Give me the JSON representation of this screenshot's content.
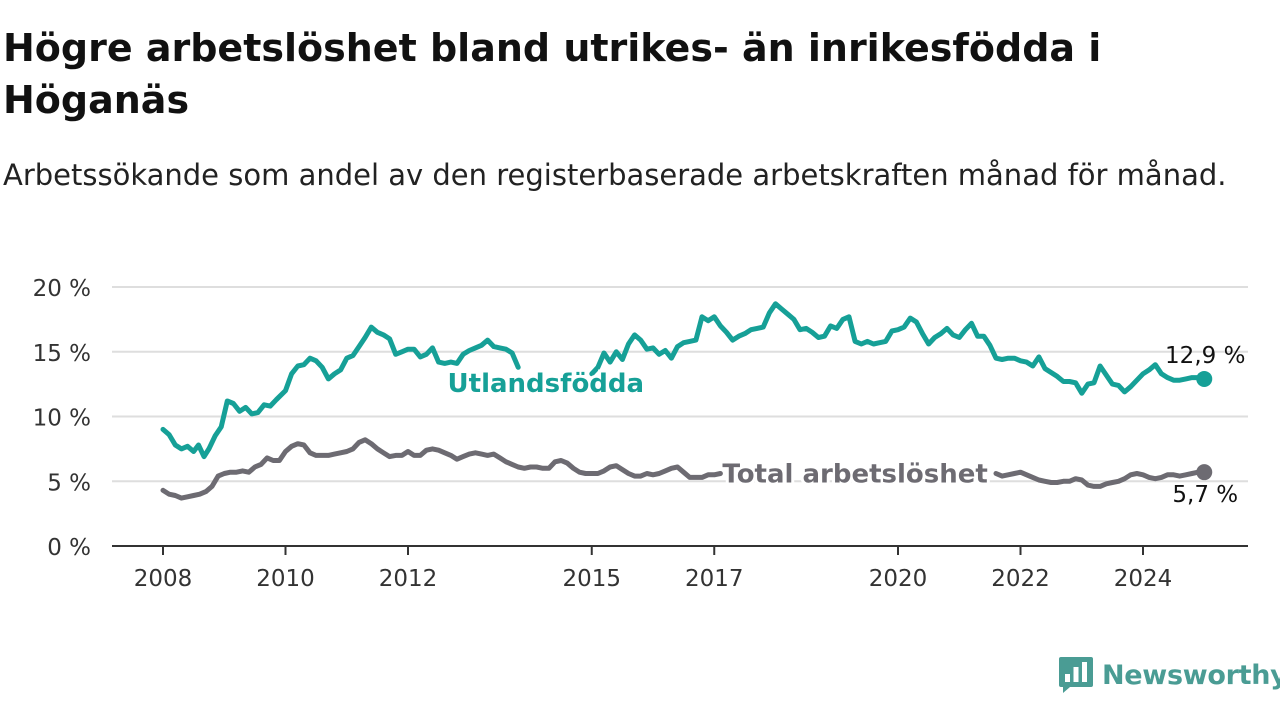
{
  "title": "Högre arbetslöshet bland utrikes- än inrikesfödda i Höganäs",
  "subtitle": "Arbetssökande som andel av den registerbaserade arbetskraften månad för månad.",
  "brand": {
    "name": "Newsworthy",
    "icon": "newsworthy-logo-icon"
  },
  "colors": {
    "foreign_born": "#16a097",
    "total": "#6d6b72",
    "grid": "#dedede",
    "axis": "#333333"
  },
  "chart_data": {
    "type": "line",
    "title": "Högre arbetslöshet bland utrikes- än inrikesfödda i Höganäs",
    "subtitle": "Arbetssökande som andel av den registerbaserade arbetskraften månad för månad.",
    "xlabel": "",
    "ylabel": "",
    "ylim": [
      0,
      20
    ],
    "xlim": [
      2008.0,
      2026.0
    ],
    "x_ticks": [
      2008,
      2010,
      2012,
      2015,
      2017,
      2020,
      2022,
      2024
    ],
    "y_ticks": [
      {
        "value": 0,
        "label": "0 %"
      },
      {
        "value": 5,
        "label": "5 %"
      },
      {
        "value": 10,
        "label": "10 %"
      },
      {
        "value": 15,
        "label": "15 %"
      },
      {
        "value": 20,
        "label": "20 %"
      }
    ],
    "grid": "horizontal",
    "legend": "inline labels",
    "series": [
      {
        "name": "Utlandsfödda",
        "color": "#16a097",
        "end_label": "12,9 %",
        "points": [
          [
            2008.0,
            9.0
          ],
          [
            2008.1,
            8.6
          ],
          [
            2008.2,
            7.8
          ],
          [
            2008.3,
            7.5
          ],
          [
            2008.4,
            7.7
          ],
          [
            2008.5,
            7.3
          ],
          [
            2008.58,
            7.8
          ],
          [
            2008.67,
            6.9
          ],
          [
            2008.75,
            7.5
          ],
          [
            2008.85,
            8.5
          ],
          [
            2008.95,
            9.2
          ],
          [
            2009.05,
            11.2
          ],
          [
            2009.15,
            11.0
          ],
          [
            2009.25,
            10.4
          ],
          [
            2009.35,
            10.7
          ],
          [
            2009.45,
            10.2
          ],
          [
            2009.55,
            10.3
          ],
          [
            2009.65,
            10.9
          ],
          [
            2009.75,
            10.8
          ],
          [
            2009.85,
            11.3
          ],
          [
            2010.0,
            12.0
          ],
          [
            2010.1,
            13.3
          ],
          [
            2010.2,
            13.9
          ],
          [
            2010.3,
            14.0
          ],
          [
            2010.4,
            14.5
          ],
          [
            2010.5,
            14.3
          ],
          [
            2010.6,
            13.8
          ],
          [
            2010.7,
            12.9
          ],
          [
            2010.8,
            13.3
          ],
          [
            2010.9,
            13.6
          ],
          [
            2011.0,
            14.5
          ],
          [
            2011.1,
            14.7
          ],
          [
            2011.2,
            15.4
          ],
          [
            2011.3,
            16.1
          ],
          [
            2011.4,
            16.9
          ],
          [
            2011.5,
            16.5
          ],
          [
            2011.6,
            16.3
          ],
          [
            2011.7,
            16.0
          ],
          [
            2011.8,
            14.8
          ],
          [
            2011.9,
            15.0
          ],
          [
            2012.0,
            15.2
          ],
          [
            2012.1,
            15.2
          ],
          [
            2012.2,
            14.6
          ],
          [
            2012.3,
            14.8
          ],
          [
            2012.4,
            15.3
          ],
          [
            2012.5,
            14.2
          ],
          [
            2012.6,
            14.1
          ],
          [
            2012.7,
            14.2
          ],
          [
            2012.8,
            14.1
          ],
          [
            2012.9,
            14.8
          ],
          [
            2013.0,
            15.1
          ],
          [
            2013.1,
            15.3
          ],
          [
            2013.2,
            15.5
          ],
          [
            2013.3,
            15.9
          ],
          [
            2013.4,
            15.4
          ],
          [
            2013.5,
            15.3
          ],
          [
            2013.6,
            15.2
          ],
          [
            2013.7,
            14.9
          ],
          [
            2013.8,
            13.8
          ]
        ],
        "points_after_label": [
          [
            2015.0,
            13.3
          ],
          [
            2015.1,
            13.8
          ],
          [
            2015.2,
            14.9
          ],
          [
            2015.3,
            14.2
          ],
          [
            2015.4,
            15.0
          ],
          [
            2015.5,
            14.4
          ],
          [
            2015.6,
            15.6
          ],
          [
            2015.7,
            16.3
          ],
          [
            2015.8,
            15.9
          ],
          [
            2015.9,
            15.2
          ],
          [
            2016.0,
            15.3
          ],
          [
            2016.1,
            14.8
          ],
          [
            2016.2,
            15.1
          ],
          [
            2016.3,
            14.5
          ],
          [
            2016.4,
            15.4
          ],
          [
            2016.5,
            15.7
          ],
          [
            2016.6,
            15.8
          ],
          [
            2016.7,
            15.9
          ],
          [
            2016.8,
            17.7
          ],
          [
            2016.9,
            17.4
          ],
          [
            2017.0,
            17.7
          ],
          [
            2017.1,
            17.0
          ],
          [
            2017.2,
            16.5
          ],
          [
            2017.3,
            15.9
          ],
          [
            2017.4,
            16.2
          ],
          [
            2017.5,
            16.4
          ],
          [
            2017.6,
            16.7
          ],
          [
            2017.7,
            16.8
          ],
          [
            2017.8,
            16.9
          ],
          [
            2017.9,
            18.0
          ],
          [
            2018.0,
            18.7
          ],
          [
            2018.1,
            18.3
          ],
          [
            2018.2,
            17.9
          ],
          [
            2018.3,
            17.5
          ],
          [
            2018.4,
            16.7
          ],
          [
            2018.5,
            16.8
          ],
          [
            2018.6,
            16.5
          ],
          [
            2018.7,
            16.1
          ],
          [
            2018.8,
            16.2
          ],
          [
            2018.9,
            17.0
          ],
          [
            2019.0,
            16.8
          ],
          [
            2019.1,
            17.5
          ],
          [
            2019.2,
            17.7
          ],
          [
            2019.3,
            15.8
          ],
          [
            2019.4,
            15.6
          ],
          [
            2019.5,
            15.8
          ],
          [
            2019.6,
            15.6
          ],
          [
            2019.7,
            15.7
          ],
          [
            2019.8,
            15.8
          ],
          [
            2019.9,
            16.6
          ],
          [
            2020.0,
            16.7
          ],
          [
            2020.1,
            16.9
          ],
          [
            2020.2,
            17.6
          ],
          [
            2020.3,
            17.3
          ],
          [
            2020.4,
            16.4
          ],
          [
            2020.5,
            15.6
          ],
          [
            2020.6,
            16.1
          ],
          [
            2020.7,
            16.4
          ],
          [
            2020.8,
            16.8
          ],
          [
            2020.9,
            16.3
          ],
          [
            2021.0,
            16.1
          ],
          [
            2021.1,
            16.7
          ],
          [
            2021.2,
            17.2
          ],
          [
            2021.3,
            16.2
          ],
          [
            2021.4,
            16.2
          ],
          [
            2021.5,
            15.5
          ],
          [
            2021.6,
            14.5
          ],
          [
            2021.7,
            14.4
          ],
          [
            2021.8,
            14.5
          ],
          [
            2021.9,
            14.5
          ],
          [
            2022.0,
            14.3
          ],
          [
            2022.1,
            14.2
          ],
          [
            2022.2,
            13.9
          ],
          [
            2022.3,
            14.6
          ],
          [
            2022.4,
            13.7
          ],
          [
            2022.5,
            13.4
          ],
          [
            2022.6,
            13.1
          ],
          [
            2022.7,
            12.7
          ],
          [
            2022.8,
            12.7
          ],
          [
            2022.9,
            12.6
          ],
          [
            2023.0,
            11.8
          ],
          [
            2023.1,
            12.5
          ],
          [
            2023.2,
            12.6
          ],
          [
            2023.3,
            13.9
          ],
          [
            2023.4,
            13.2
          ],
          [
            2023.5,
            12.5
          ],
          [
            2023.6,
            12.4
          ],
          [
            2023.7,
            11.9
          ],
          [
            2023.8,
            12.3
          ],
          [
            2023.9,
            12.8
          ],
          [
            2024.0,
            13.3
          ],
          [
            2024.1,
            13.6
          ],
          [
            2024.2,
            14.0
          ],
          [
            2024.3,
            13.3
          ],
          [
            2024.4,
            13.0
          ],
          [
            2024.5,
            12.8
          ],
          [
            2024.6,
            12.8
          ],
          [
            2024.7,
            12.9
          ],
          [
            2024.8,
            13.0
          ],
          [
            2024.9,
            13.0
          ],
          [
            2025.0,
            12.9
          ]
        ]
      },
      {
        "name": "Total arbetslöshet",
        "color": "#6d6b72",
        "end_label": "5,7 %",
        "points": [
          [
            2008.0,
            4.3
          ],
          [
            2008.1,
            4.0
          ],
          [
            2008.2,
            3.9
          ],
          [
            2008.3,
            3.7
          ],
          [
            2008.4,
            3.8
          ],
          [
            2008.5,
            3.9
          ],
          [
            2008.6,
            4.0
          ],
          [
            2008.7,
            4.2
          ],
          [
            2008.8,
            4.6
          ],
          [
            2008.9,
            5.4
          ],
          [
            2009.0,
            5.6
          ],
          [
            2009.1,
            5.7
          ],
          [
            2009.2,
            5.7
          ],
          [
            2009.3,
            5.8
          ],
          [
            2009.4,
            5.7
          ],
          [
            2009.5,
            6.1
          ],
          [
            2009.6,
            6.3
          ],
          [
            2009.7,
            6.8
          ],
          [
            2009.8,
            6.6
          ],
          [
            2009.9,
            6.6
          ],
          [
            2010.0,
            7.3
          ],
          [
            2010.1,
            7.7
          ],
          [
            2010.2,
            7.9
          ],
          [
            2010.3,
            7.8
          ],
          [
            2010.4,
            7.2
          ],
          [
            2010.5,
            7.0
          ],
          [
            2010.6,
            7.0
          ],
          [
            2010.7,
            7.0
          ],
          [
            2010.8,
            7.1
          ],
          [
            2010.9,
            7.2
          ],
          [
            2011.0,
            7.3
          ],
          [
            2011.1,
            7.5
          ],
          [
            2011.2,
            8.0
          ],
          [
            2011.3,
            8.2
          ],
          [
            2011.4,
            7.9
          ],
          [
            2011.5,
            7.5
          ],
          [
            2011.6,
            7.2
          ],
          [
            2011.7,
            6.9
          ],
          [
            2011.8,
            7.0
          ],
          [
            2011.9,
            7.0
          ],
          [
            2012.0,
            7.3
          ],
          [
            2012.1,
            7.0
          ],
          [
            2012.2,
            7.0
          ],
          [
            2012.3,
            7.4
          ],
          [
            2012.4,
            7.5
          ],
          [
            2012.5,
            7.4
          ],
          [
            2012.6,
            7.2
          ],
          [
            2012.7,
            7.0
          ],
          [
            2012.8,
            6.7
          ],
          [
            2012.9,
            6.9
          ],
          [
            2013.0,
            7.1
          ],
          [
            2013.1,
            7.2
          ],
          [
            2013.2,
            7.1
          ],
          [
            2013.3,
            7.0
          ],
          [
            2013.4,
            7.1
          ],
          [
            2013.5,
            6.8
          ],
          [
            2013.6,
            6.5
          ],
          [
            2013.7,
            6.3
          ],
          [
            2013.8,
            6.1
          ],
          [
            2013.9,
            6.0
          ],
          [
            2014.0,
            6.1
          ],
          [
            2014.1,
            6.1
          ],
          [
            2014.2,
            6.0
          ],
          [
            2014.3,
            6.0
          ],
          [
            2014.4,
            6.5
          ],
          [
            2014.5,
            6.6
          ],
          [
            2014.6,
            6.4
          ],
          [
            2014.7,
            6.0
          ],
          [
            2014.8,
            5.7
          ],
          [
            2014.9,
            5.6
          ],
          [
            2015.0,
            5.6
          ],
          [
            2015.1,
            5.6
          ],
          [
            2015.2,
            5.8
          ],
          [
            2015.3,
            6.1
          ],
          [
            2015.4,
            6.2
          ],
          [
            2015.5,
            5.9
          ],
          [
            2015.6,
            5.6
          ],
          [
            2015.7,
            5.4
          ],
          [
            2015.8,
            5.4
          ],
          [
            2015.9,
            5.6
          ],
          [
            2016.0,
            5.5
          ],
          [
            2016.1,
            5.6
          ],
          [
            2016.2,
            5.8
          ],
          [
            2016.3,
            6.0
          ],
          [
            2016.4,
            6.1
          ],
          [
            2016.5,
            5.7
          ],
          [
            2016.6,
            5.3
          ],
          [
            2016.7,
            5.3
          ],
          [
            2016.8,
            5.3
          ],
          [
            2016.9,
            5.5
          ],
          [
            2017.0,
            5.5
          ],
          [
            2017.1,
            5.6
          ]
        ],
        "points_after_label": [
          [
            2021.6,
            5.6
          ],
          [
            2021.7,
            5.4
          ],
          [
            2021.8,
            5.5
          ],
          [
            2021.9,
            5.6
          ],
          [
            2022.0,
            5.7
          ],
          [
            2022.1,
            5.5
          ],
          [
            2022.2,
            5.3
          ],
          [
            2022.3,
            5.1
          ],
          [
            2022.4,
            5.0
          ],
          [
            2022.5,
            4.9
          ],
          [
            2022.6,
            4.9
          ],
          [
            2022.7,
            5.0
          ],
          [
            2022.8,
            5.0
          ],
          [
            2022.9,
            5.2
          ],
          [
            2023.0,
            5.1
          ],
          [
            2023.1,
            4.7
          ],
          [
            2023.2,
            4.6
          ],
          [
            2023.3,
            4.6
          ],
          [
            2023.4,
            4.8
          ],
          [
            2023.5,
            4.9
          ],
          [
            2023.6,
            5.0
          ],
          [
            2023.7,
            5.2
          ],
          [
            2023.8,
            5.5
          ],
          [
            2023.9,
            5.6
          ],
          [
            2024.0,
            5.5
          ],
          [
            2024.1,
            5.3
          ],
          [
            2024.2,
            5.2
          ],
          [
            2024.3,
            5.3
          ],
          [
            2024.4,
            5.5
          ],
          [
            2024.5,
            5.5
          ],
          [
            2024.6,
            5.4
          ],
          [
            2024.7,
            5.5
          ],
          [
            2024.8,
            5.6
          ],
          [
            2024.9,
            5.7
          ],
          [
            2025.0,
            5.7
          ]
        ]
      }
    ],
    "annotations": [
      {
        "series": "Utlandsfödda",
        "text": "Utlandsfödda",
        "x": 2014.25,
        "y": 12.6
      },
      {
        "series": "Total arbetslöshet",
        "text": "Total arbetslöshet",
        "x": 2019.3,
        "y": 5.6
      }
    ]
  }
}
